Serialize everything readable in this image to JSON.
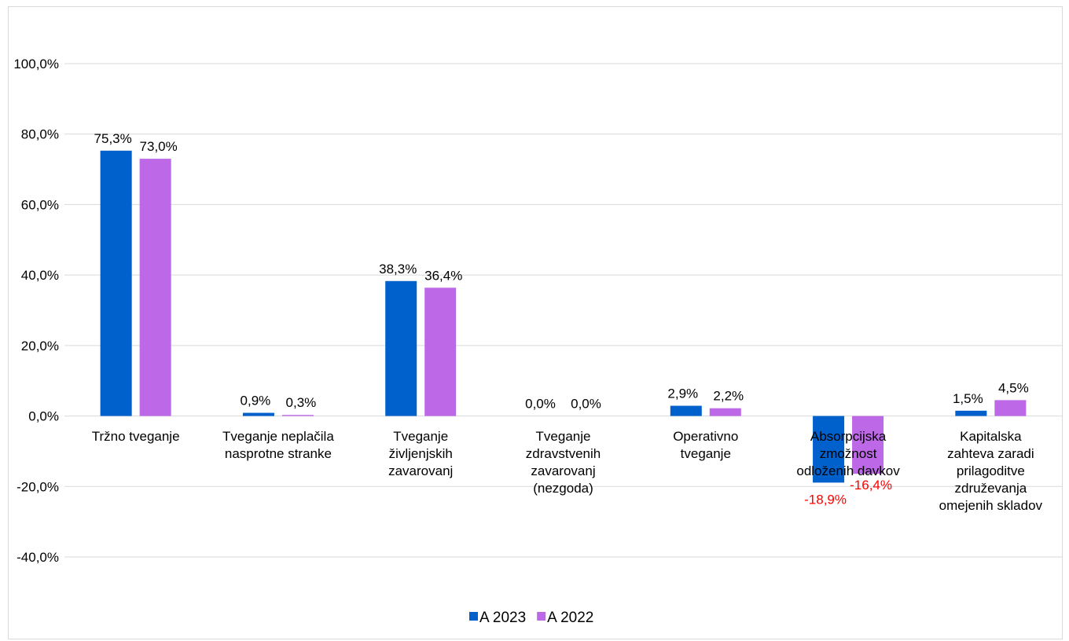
{
  "chart_data": {
    "type": "bar",
    "title": "",
    "xlabel": "",
    "ylabel": "",
    "ylim": [
      -40,
      100
    ],
    "y_ticks": [
      "100,0%",
      "80,0%",
      "60,0%",
      "40,0%",
      "20,0%",
      "0,0%",
      "-20,0%",
      "-40,0%"
    ],
    "y_tick_values": [
      100,
      80,
      60,
      40,
      20,
      0,
      -20,
      -40
    ],
    "grid": true,
    "legend_position": "bottom",
    "categories": [
      [
        "Tržno tveganje"
      ],
      [
        "Tveganje neplačila",
        "nasprotne stranke"
      ],
      [
        "Tveganje",
        "življenjskih",
        "zavarovanj"
      ],
      [
        "Tveganje",
        "zdravstvenih",
        "zavarovanj",
        "(nezgoda)"
      ],
      [
        "Operativno",
        "tveganje"
      ],
      [
        "Absorpcijska",
        "zmožnost",
        "odloženih davkov"
      ],
      [
        "Kapitalska",
        "zahteva zaradi",
        "prilagoditve",
        "združevanja",
        "omejenih skladov"
      ]
    ],
    "series": [
      {
        "name": "A 2023",
        "color": "#0060CC",
        "values": [
          75.3,
          0.9,
          38.3,
          0.0,
          2.9,
          -18.9,
          1.5
        ],
        "labels": [
          "75,3%",
          "0,9%",
          "38,3%",
          "0,0%",
          "2,9%",
          "-18,9%",
          "1,5%"
        ]
      },
      {
        "name": "A 2022",
        "color": "#BD68E6",
        "values": [
          73.0,
          0.3,
          36.4,
          0.0,
          2.2,
          -16.4,
          4.5
        ],
        "labels": [
          "73,0%",
          "0,3%",
          "36,4%",
          "0,0%",
          "2,2%",
          "-16,4%",
          "4,5%"
        ]
      }
    ],
    "label_color_positive": "#000000",
    "label_color_negative": "#FF0000",
    "grid_color": "#d9d9d9"
  }
}
